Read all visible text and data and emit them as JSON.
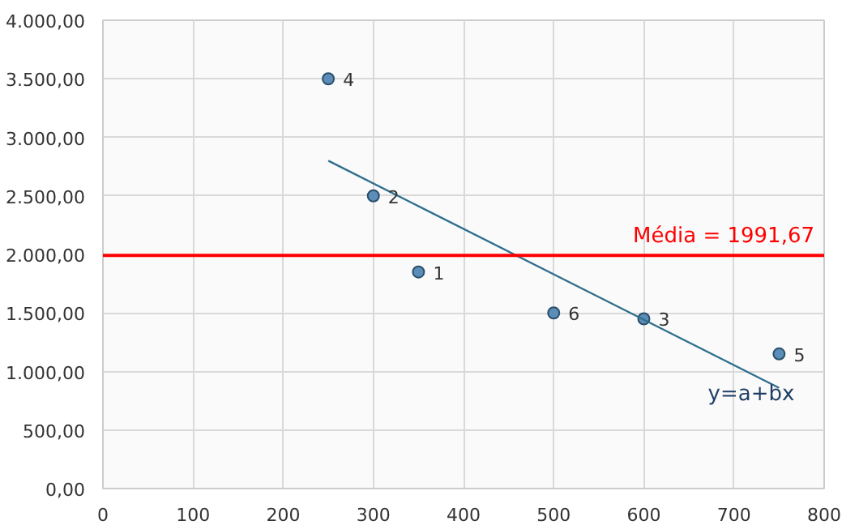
{
  "chart_data": {
    "type": "scatter",
    "xlim": [
      0,
      800
    ],
    "xticks": [
      0,
      100,
      200,
      300,
      400,
      500,
      600,
      700,
      800
    ],
    "ylim": [
      0,
      4000
    ],
    "yticks": [
      {
        "value": 0,
        "label": "0,00"
      },
      {
        "value": 500,
        "label": "500,00"
      },
      {
        "value": 1000,
        "label": "1.000,00"
      },
      {
        "value": 1500,
        "label": "1.500,00"
      },
      {
        "value": 2000,
        "label": "2.000,00"
      },
      {
        "value": 2500,
        "label": "2.500,00"
      },
      {
        "value": 3000,
        "label": "3.000,00"
      },
      {
        "value": 3500,
        "label": "3.500,00"
      },
      {
        "value": 4000,
        "label": "4.000,00"
      }
    ],
    "grid": true,
    "marker": "circle",
    "series": [
      {
        "color": "#5b8db8",
        "x": [
          350,
          300,
          600,
          250,
          750,
          500
        ],
        "values": [
          1850,
          2500,
          1450,
          3500,
          1150,
          1500
        ]
      },
      {
        "type": "line",
        "color": "#2e6e8e",
        "x": [
          250,
          750
        ],
        "values": [
          2800,
          860
        ],
        "marker": "none"
      }
    ],
    "ref_lines": [
      {
        "axis": "y",
        "value": 1991.67,
        "label": "Média = 1991,67",
        "color": "#ff0000"
      }
    ],
    "annotations": [
      {
        "text": "1",
        "x": 350,
        "y": 1850
      },
      {
        "text": "2",
        "x": 300,
        "y": 2500
      },
      {
        "text": "3",
        "x": 600,
        "y": 1450
      },
      {
        "text": "4",
        "x": 250,
        "y": 3500
      },
      {
        "text": "5",
        "x": 750,
        "y": 1150
      },
      {
        "text": "6",
        "x": 500,
        "y": 1500
      },
      "y=a+bx"
    ]
  }
}
